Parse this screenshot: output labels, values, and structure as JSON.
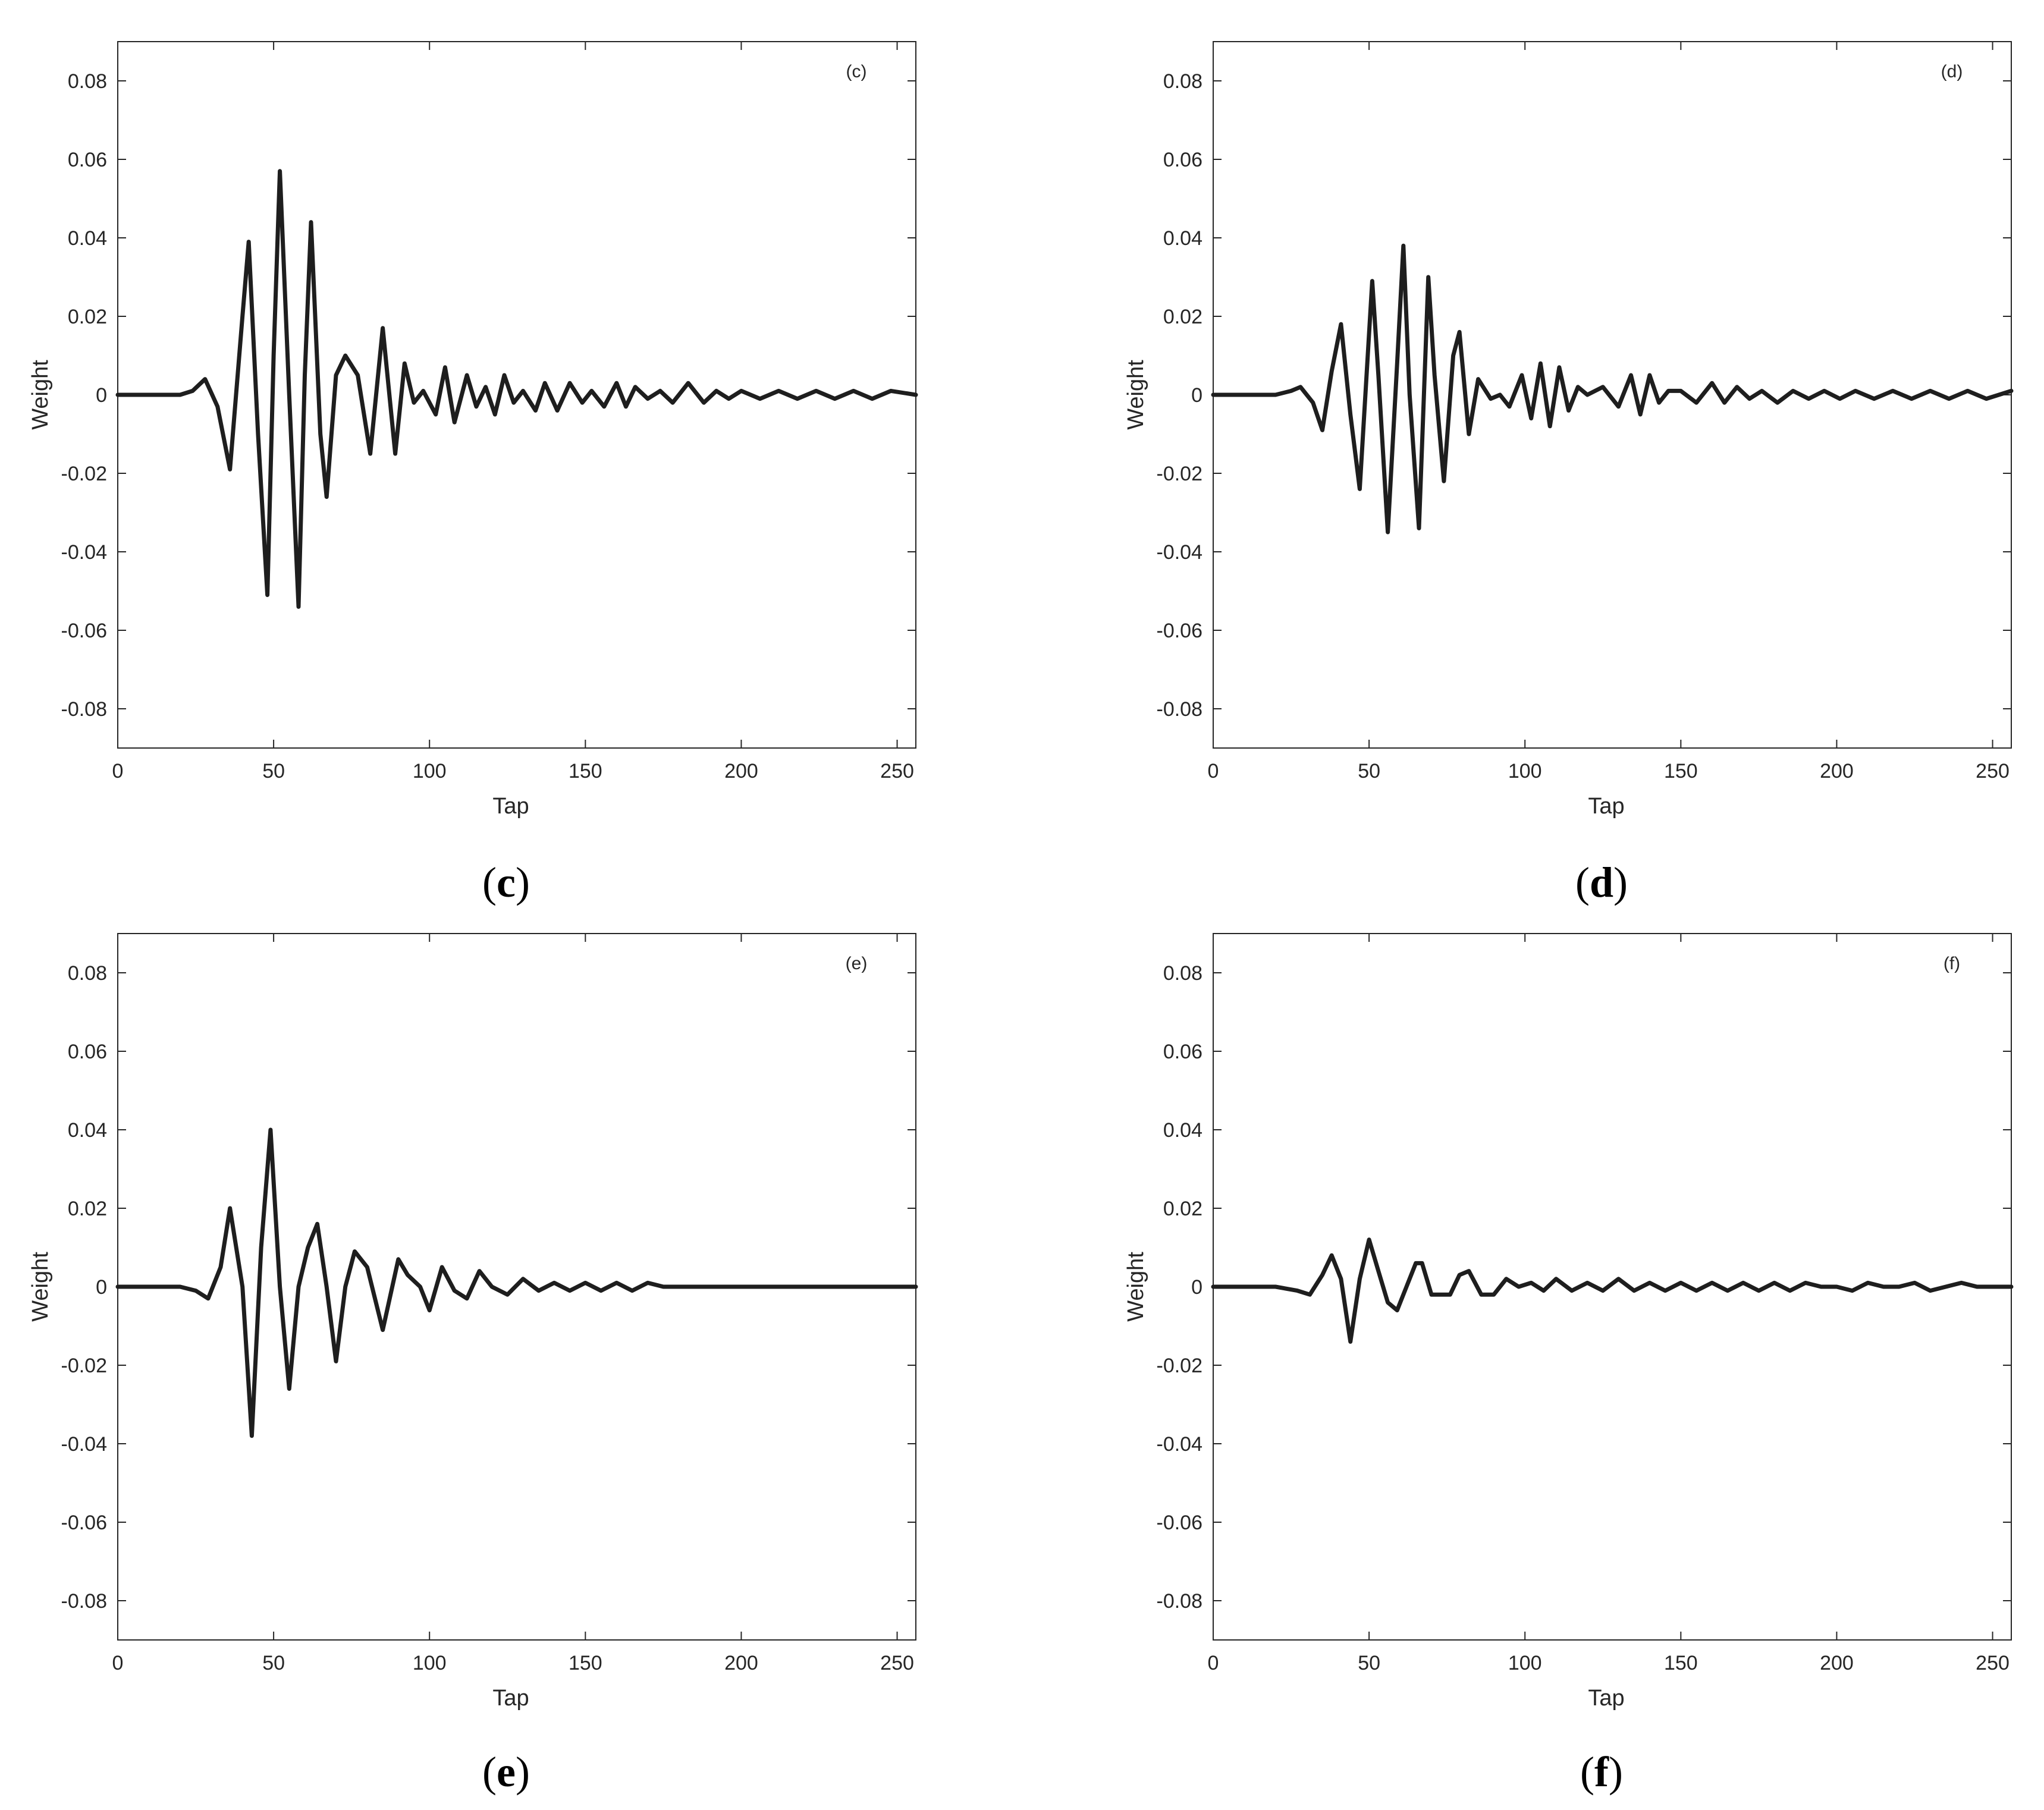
{
  "chart_data": [
    {
      "type": "line",
      "panel_tag": "(c)",
      "caption_letter": "c",
      "xlabel": "Tap",
      "ylabel": "Weight",
      "xlim": [
        0,
        256
      ],
      "ylim": [
        -0.09,
        0.09
      ],
      "xticks": [
        0,
        50,
        100,
        150,
        200,
        250
      ],
      "xtick_labels": [
        "0",
        "50",
        "100",
        "150",
        "200",
        "250"
      ],
      "yticks": [
        0.08,
        0.06,
        0.04,
        0.02,
        0,
        -0.02,
        -0.04,
        -0.06,
        -0.08
      ],
      "ytick_labels": [
        "0.08",
        "0.06",
        "0.04",
        "0.02",
        "0",
        "-0.02",
        "-0.04",
        "-0.06",
        "-0.08"
      ],
      "grid": false,
      "series": [
        {
          "color": "#1e1e1e",
          "x": [
            0,
            10,
            20,
            24,
            28,
            32,
            36,
            40,
            42,
            45,
            48,
            50,
            52,
            55,
            58,
            60,
            62,
            65,
            67,
            70,
            73,
            77,
            81,
            85,
            89,
            92,
            95,
            98,
            102,
            105,
            108,
            112,
            115,
            118,
            121,
            124,
            127,
            130,
            134,
            137,
            141,
            145,
            149,
            152,
            156,
            160,
            163,
            166,
            170,
            174,
            178,
            183,
            188,
            192,
            196,
            200,
            206,
            212,
            218,
            224,
            230,
            236,
            242,
            248,
            256
          ],
          "y": [
            0,
            0,
            0,
            0.001,
            0.004,
            -0.003,
            -0.019,
            0.02,
            0.039,
            -0.01,
            -0.051,
            0.01,
            0.057,
            0.0,
            -0.054,
            0.005,
            0.044,
            -0.01,
            -0.026,
            0.005,
            0.01,
            0.005,
            -0.015,
            0.017,
            -0.015,
            0.008,
            -0.002,
            0.001,
            -0.005,
            0.007,
            -0.007,
            0.005,
            -0.003,
            0.002,
            -0.005,
            0.005,
            -0.002,
            0.001,
            -0.004,
            0.003,
            -0.004,
            0.003,
            -0.002,
            0.001,
            -0.003,
            0.003,
            -0.003,
            0.002,
            -0.001,
            0.001,
            -0.002,
            0.003,
            -0.002,
            0.001,
            -0.001,
            0.001,
            -0.001,
            0.001,
            -0.001,
            0.001,
            -0.001,
            0.001,
            -0.001,
            0.001,
            0
          ]
        }
      ]
    },
    {
      "type": "line",
      "panel_tag": "(d)",
      "caption_letter": "d",
      "xlabel": "Tap",
      "ylabel": "Weight",
      "xlim": [
        0,
        256
      ],
      "ylim": [
        -0.09,
        0.09
      ],
      "xticks": [
        0,
        50,
        100,
        150,
        200,
        250
      ],
      "xtick_labels": [
        "0",
        "50",
        "100",
        "150",
        "200",
        "250"
      ],
      "yticks": [
        0.08,
        0.06,
        0.04,
        0.02,
        0,
        -0.02,
        -0.04,
        -0.06,
        -0.08
      ],
      "ytick_labels": [
        "0.08",
        "0.06",
        "0.04",
        "0.02",
        "0",
        "-0.02",
        "-0.04",
        "-0.06",
        "-0.08"
      ],
      "grid": false,
      "series": [
        {
          "color": "#1e1e1e",
          "x": [
            0,
            10,
            20,
            25,
            28,
            32,
            35,
            38,
            41,
            44,
            47,
            51,
            53,
            56,
            59,
            61,
            63,
            66,
            69,
            71,
            74,
            77,
            79,
            82,
            85,
            89,
            92,
            95,
            99,
            102,
            105,
            108,
            111,
            114,
            117,
            120,
            125,
            130,
            134,
            137,
            140,
            143,
            146,
            150,
            155,
            160,
            164,
            168,
            172,
            176,
            181,
            186,
            191,
            196,
            201,
            206,
            212,
            218,
            224,
            230,
            236,
            242,
            248,
            256
          ],
          "y": [
            0,
            0,
            0,
            0.001,
            0.002,
            -0.002,
            -0.009,
            0.006,
            0.018,
            -0.005,
            -0.024,
            0.029,
            0.005,
            -0.035,
            0.008,
            0.038,
            0.0,
            -0.034,
            0.03,
            0.005,
            -0.022,
            0.01,
            0.016,
            -0.01,
            0.004,
            -0.001,
            0.0,
            -0.003,
            0.005,
            -0.006,
            0.008,
            -0.008,
            0.007,
            -0.004,
            0.002,
            0.0,
            0.002,
            -0.003,
            0.005,
            -0.005,
            0.005,
            -0.002,
            0.001,
            0.001,
            -0.002,
            0.003,
            -0.002,
            0.002,
            -0.001,
            0.001,
            -0.002,
            0.001,
            -0.001,
            0.001,
            -0.001,
            0.001,
            -0.001,
            0.001,
            -0.001,
            0.001,
            -0.001,
            0.001,
            -0.001,
            0.001
          ]
        }
      ]
    },
    {
      "type": "line",
      "panel_tag": "(e)",
      "caption_letter": "e",
      "xlabel": "Tap",
      "ylabel": "Weight",
      "xlim": [
        0,
        256
      ],
      "ylim": [
        -0.09,
        0.09
      ],
      "xticks": [
        0,
        50,
        100,
        150,
        200,
        250
      ],
      "xtick_labels": [
        "0",
        "50",
        "100",
        "150",
        "200",
        "250"
      ],
      "yticks": [
        0.08,
        0.06,
        0.04,
        0.02,
        0,
        -0.02,
        -0.04,
        -0.06,
        -0.08
      ],
      "ytick_labels": [
        "0.08",
        "0.06",
        "0.04",
        "0.02",
        "0",
        "-0.02",
        "-0.04",
        "-0.06",
        "-0.08"
      ],
      "grid": false,
      "series": [
        {
          "color": "#1e1e1e",
          "x": [
            0,
            10,
            20,
            25,
            29,
            33,
            36,
            40,
            43,
            46,
            49,
            52,
            55,
            58,
            61,
            64,
            67,
            70,
            73,
            76,
            80,
            85,
            90,
            93,
            97,
            100,
            104,
            108,
            112,
            116,
            120,
            125,
            130,
            135,
            140,
            145,
            150,
            155,
            160,
            165,
            170,
            175,
            180,
            190,
            200,
            210,
            220,
            230,
            240,
            256
          ],
          "y": [
            0,
            0,
            0,
            -0.001,
            -0.003,
            0.005,
            0.02,
            0.0,
            -0.038,
            0.01,
            0.04,
            0.0,
            -0.026,
            0.0,
            0.01,
            0.016,
            0.0,
            -0.019,
            0.0,
            0.009,
            0.005,
            -0.011,
            0.007,
            0.003,
            0.0,
            -0.006,
            0.005,
            -0.001,
            -0.003,
            0.004,
            0.0,
            -0.002,
            0.002,
            -0.001,
            0.001,
            -0.001,
            0.001,
            -0.001,
            0.001,
            -0.001,
            0.001,
            0.0,
            0.0,
            0.0,
            0.0,
            0.0,
            0.0,
            0.0,
            0.0,
            0.0
          ]
        }
      ]
    },
    {
      "type": "line",
      "panel_tag": "(f)",
      "caption_letter": "f",
      "xlabel": "Tap",
      "ylabel": "Weight",
      "xlim": [
        0,
        256
      ],
      "ylim": [
        -0.09,
        0.09
      ],
      "xticks": [
        0,
        50,
        100,
        150,
        200,
        250
      ],
      "xtick_labels": [
        "0",
        "50",
        "100",
        "150",
        "200",
        "250"
      ],
      "yticks": [
        0.08,
        0.06,
        0.04,
        0.02,
        0,
        -0.02,
        -0.04,
        -0.06,
        -0.08
      ],
      "ytick_labels": [
        "0.08",
        "0.06",
        "0.04",
        "0.02",
        "0",
        "-0.02",
        "-0.04",
        "-0.06",
        "-0.08"
      ],
      "grid": false,
      "series": [
        {
          "color": "#1e1e1e",
          "x": [
            0,
            10,
            20,
            27,
            31,
            35,
            38,
            41,
            44,
            47,
            50,
            53,
            56,
            59,
            62,
            65,
            67,
            70,
            73,
            76,
            79,
            82,
            86,
            90,
            94,
            98,
            102,
            106,
            110,
            115,
            120,
            125,
            130,
            135,
            140,
            145,
            150,
            155,
            160,
            165,
            170,
            175,
            180,
            185,
            190,
            195,
            200,
            205,
            210,
            215,
            220,
            225,
            230,
            235,
            240,
            245,
            250,
            256
          ],
          "y": [
            0,
            0,
            0,
            -0.001,
            -0.002,
            0.003,
            0.008,
            0.002,
            -0.014,
            0.002,
            0.012,
            0.004,
            -0.004,
            -0.006,
            0.0,
            0.006,
            0.006,
            -0.002,
            -0.002,
            -0.002,
            0.003,
            0.004,
            -0.002,
            -0.002,
            0.002,
            0.0,
            0.001,
            -0.001,
            0.002,
            -0.001,
            0.001,
            -0.001,
            0.002,
            -0.001,
            0.001,
            -0.001,
            0.001,
            -0.001,
            0.001,
            -0.001,
            0.001,
            -0.001,
            0.001,
            -0.001,
            0.001,
            0.0,
            0.0,
            -0.001,
            0.001,
            0.0,
            0.0,
            0.001,
            -0.001,
            0.0,
            0.001,
            0.0,
            0.0,
            0.0
          ]
        }
      ]
    }
  ]
}
